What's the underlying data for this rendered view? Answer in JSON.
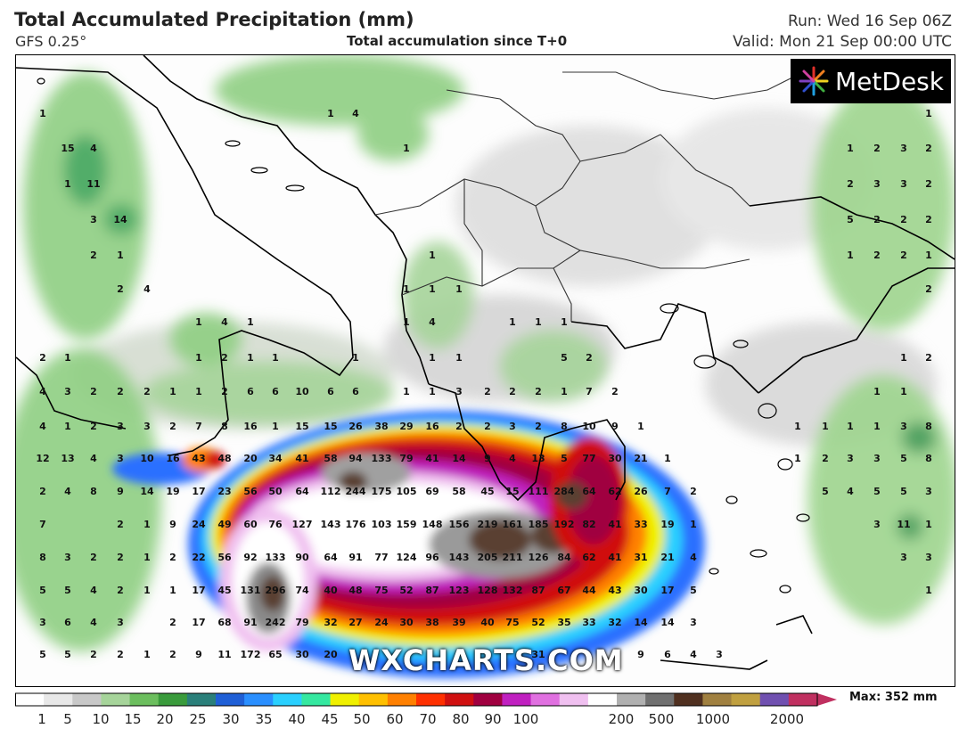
{
  "header": {
    "title": "Total Accumulated Precipitation (mm)",
    "model": "GFS 0.25°",
    "subtitle": "Total accumulation since T+0",
    "run": "Run: Wed 16 Sep 06Z",
    "valid": "Valid: Mon 21 Sep 00:00 UTC"
  },
  "logo": {
    "text": "MetDesk",
    "icon": "metdesk-starburst-icon"
  },
  "watermark": "WXCHARTS.COM",
  "colorbar": {
    "ticks": [
      "1",
      "5",
      "10",
      "15",
      "20",
      "25",
      "30",
      "35",
      "40",
      "45",
      "50",
      "60",
      "70",
      "80",
      "90",
      "100",
      "200",
      "500",
      "1000",
      "2000"
    ],
    "max_label": "Max: 352 mm",
    "colors": [
      "#ffffff",
      "#e8e8e8",
      "#c8c8c8",
      "#a6d49a",
      "#6cbe5e",
      "#3a9b3c",
      "#2a7f7a",
      "#1f5fd6",
      "#2a8fff",
      "#2ad0ff",
      "#35e8a0",
      "#f0f000",
      "#ffc000",
      "#ff8000",
      "#ff3000",
      "#d01010",
      "#a00040",
      "#c020c0",
      "#e070e0",
      "#f0c0f0",
      "#ffffff",
      "#b0b0b0",
      "#707070",
      "#503020",
      "#a08040",
      "#c0a040",
      "#7050b0",
      "#c03060"
    ]
  },
  "map": {
    "numbers": [
      [
        "1",
        47,
        126
      ],
      [
        "15",
        75,
        165
      ],
      [
        "4",
        104,
        165
      ],
      [
        "1",
        75,
        205
      ],
      [
        "11",
        104,
        205
      ],
      [
        "3",
        104,
        245
      ],
      [
        "14",
        134,
        245
      ],
      [
        "2",
        104,
        285
      ],
      [
        "1",
        134,
        285
      ],
      [
        "2",
        134,
        323
      ],
      [
        "4",
        164,
        323
      ],
      [
        "1",
        370,
        126
      ],
      [
        "4",
        398,
        126
      ],
      [
        "1",
        455,
        165
      ],
      [
        "1",
        1041,
        126
      ],
      [
        "1",
        953,
        165
      ],
      [
        "2",
        983,
        165
      ],
      [
        "3",
        1013,
        165
      ],
      [
        "2",
        1041,
        165
      ],
      [
        "2",
        953,
        205
      ],
      [
        "3",
        983,
        205
      ],
      [
        "3",
        1013,
        205
      ],
      [
        "2",
        1041,
        205
      ],
      [
        "5",
        953,
        245
      ],
      [
        "2",
        983,
        245
      ],
      [
        "2",
        1013,
        245
      ],
      [
        "2",
        1041,
        245
      ],
      [
        "1",
        953,
        285
      ],
      [
        "2",
        983,
        285
      ],
      [
        "2",
        1013,
        285
      ],
      [
        "1",
        1041,
        285
      ],
      [
        "2",
        1041,
        323
      ],
      [
        "1",
        484,
        285
      ],
      [
        "1",
        455,
        323
      ],
      [
        "1",
        484,
        323
      ],
      [
        "1",
        514,
        323
      ],
      [
        "1",
        455,
        360
      ],
      [
        "4",
        484,
        360
      ],
      [
        "1",
        574,
        360
      ],
      [
        "1",
        603,
        360
      ],
      [
        "1",
        632,
        360
      ],
      [
        "1",
        222,
        360
      ],
      [
        "4",
        251,
        360
      ],
      [
        "1",
        280,
        360
      ],
      [
        "2",
        47,
        400
      ],
      [
        "1",
        75,
        400
      ],
      [
        "1",
        222,
        400
      ],
      [
        "2",
        251,
        400
      ],
      [
        "1",
        280,
        400
      ],
      [
        "1",
        308,
        400
      ],
      [
        "1",
        398,
        400
      ],
      [
        "1",
        484,
        400
      ],
      [
        "1",
        514,
        400
      ],
      [
        "5",
        632,
        400
      ],
      [
        "2",
        660,
        400
      ],
      [
        "1",
        1013,
        400
      ],
      [
        "2",
        1041,
        400
      ],
      [
        "4",
        47,
        438
      ],
      [
        "3",
        75,
        438
      ],
      [
        "2",
        104,
        438
      ],
      [
        "2",
        134,
        438
      ],
      [
        "2",
        164,
        438
      ],
      [
        "1",
        193,
        438
      ],
      [
        "1",
        222,
        438
      ],
      [
        "2",
        251,
        438
      ],
      [
        "6",
        280,
        438
      ],
      [
        "6",
        308,
        438
      ],
      [
        "10",
        338,
        438
      ],
      [
        "6",
        370,
        438
      ],
      [
        "6",
        398,
        438
      ],
      [
        "1",
        455,
        438
      ],
      [
        "1",
        484,
        438
      ],
      [
        "3",
        514,
        438
      ],
      [
        "2",
        546,
        438
      ],
      [
        "2",
        574,
        438
      ],
      [
        "2",
        603,
        438
      ],
      [
        "1",
        632,
        438
      ],
      [
        "7",
        660,
        438
      ],
      [
        "2",
        689,
        438
      ],
      [
        "1",
        983,
        438
      ],
      [
        "1",
        1013,
        438
      ],
      [
        "4",
        47,
        477
      ],
      [
        "1",
        75,
        477
      ],
      [
        "2",
        104,
        477
      ],
      [
        "3",
        134,
        477
      ],
      [
        "3",
        164,
        477
      ],
      [
        "2",
        193,
        477
      ],
      [
        "7",
        222,
        477
      ],
      [
        "8",
        251,
        477
      ],
      [
        "16",
        280,
        477
      ],
      [
        "1",
        308,
        477
      ],
      [
        "15",
        338,
        477
      ],
      [
        "15",
        370,
        477
      ],
      [
        "26",
        398,
        477
      ],
      [
        "38",
        427,
        477
      ],
      [
        "29",
        455,
        477
      ],
      [
        "16",
        484,
        477
      ],
      [
        "2",
        514,
        477
      ],
      [
        "2",
        546,
        477
      ],
      [
        "3",
        574,
        477
      ],
      [
        "2",
        603,
        477
      ],
      [
        "8",
        632,
        477
      ],
      [
        "10",
        660,
        477
      ],
      [
        "9",
        689,
        477
      ],
      [
        "1",
        718,
        477
      ],
      [
        "1",
        894,
        477
      ],
      [
        "1",
        925,
        477
      ],
      [
        "1",
        953,
        477
      ],
      [
        "1",
        983,
        477
      ],
      [
        "3",
        1013,
        477
      ],
      [
        "8",
        1041,
        477
      ],
      [
        "12",
        47,
        513
      ],
      [
        "13",
        75,
        513
      ],
      [
        "4",
        104,
        513
      ],
      [
        "3",
        134,
        513
      ],
      [
        "10",
        164,
        513
      ],
      [
        "16",
        193,
        513
      ],
      [
        "43",
        222,
        513
      ],
      [
        "48",
        251,
        513
      ],
      [
        "20",
        280,
        513
      ],
      [
        "34",
        308,
        513
      ],
      [
        "41",
        338,
        513
      ],
      [
        "58",
        370,
        513
      ],
      [
        "94",
        398,
        513
      ],
      [
        "133",
        427,
        513
      ],
      [
        "79",
        455,
        513
      ],
      [
        "41",
        484,
        513
      ],
      [
        "14",
        514,
        513
      ],
      [
        "9",
        546,
        513
      ],
      [
        "4",
        574,
        513
      ],
      [
        "13",
        603,
        513
      ],
      [
        "5",
        632,
        513
      ],
      [
        "77",
        660,
        513
      ],
      [
        "30",
        689,
        513
      ],
      [
        "21",
        718,
        513
      ],
      [
        "1",
        748,
        513
      ],
      [
        "1",
        894,
        513
      ],
      [
        "2",
        925,
        513
      ],
      [
        "3",
        953,
        513
      ],
      [
        "3",
        983,
        513
      ],
      [
        "5",
        1013,
        513
      ],
      [
        "8",
        1041,
        513
      ],
      [
        "2",
        47,
        550
      ],
      [
        "4",
        75,
        550
      ],
      [
        "8",
        104,
        550
      ],
      [
        "9",
        134,
        550
      ],
      [
        "14",
        164,
        550
      ],
      [
        "19",
        193,
        550
      ],
      [
        "17",
        222,
        550
      ],
      [
        "23",
        251,
        550
      ],
      [
        "56",
        280,
        550
      ],
      [
        "50",
        308,
        550
      ],
      [
        "64",
        338,
        550
      ],
      [
        "112",
        370,
        550
      ],
      [
        "244",
        398,
        550
      ],
      [
        "175",
        427,
        550
      ],
      [
        "105",
        455,
        550
      ],
      [
        "69",
        484,
        550
      ],
      [
        "58",
        514,
        550
      ],
      [
        "45",
        546,
        550
      ],
      [
        "15",
        574,
        550
      ],
      [
        "111",
        603,
        550
      ],
      [
        "284",
        632,
        550
      ],
      [
        "64",
        660,
        550
      ],
      [
        "62",
        689,
        550
      ],
      [
        "26",
        718,
        550
      ],
      [
        "7",
        748,
        550
      ],
      [
        "2",
        777,
        550
      ],
      [
        "5",
        925,
        550
      ],
      [
        "4",
        953,
        550
      ],
      [
        "5",
        983,
        550
      ],
      [
        "5",
        1013,
        550
      ],
      [
        "3",
        1041,
        550
      ],
      [
        "7",
        47,
        587
      ],
      [
        "2",
        134,
        587
      ],
      [
        "1",
        164,
        587
      ],
      [
        "9",
        193,
        587
      ],
      [
        "24",
        222,
        587
      ],
      [
        "49",
        251,
        587
      ],
      [
        "60",
        280,
        587
      ],
      [
        "76",
        308,
        587
      ],
      [
        "127",
        338,
        587
      ],
      [
        "143",
        370,
        587
      ],
      [
        "176",
        398,
        587
      ],
      [
        "103",
        427,
        587
      ],
      [
        "159",
        455,
        587
      ],
      [
        "148",
        484,
        587
      ],
      [
        "156",
        514,
        587
      ],
      [
        "219",
        546,
        587
      ],
      [
        "161",
        574,
        587
      ],
      [
        "185",
        603,
        587
      ],
      [
        "192",
        632,
        587
      ],
      [
        "82",
        660,
        587
      ],
      [
        "41",
        689,
        587
      ],
      [
        "33",
        718,
        587
      ],
      [
        "19",
        748,
        587
      ],
      [
        "1",
        777,
        587
      ],
      [
        "3",
        983,
        587
      ],
      [
        "11",
        1013,
        587
      ],
      [
        "1",
        1041,
        587
      ],
      [
        "8",
        47,
        624
      ],
      [
        "3",
        75,
        624
      ],
      [
        "2",
        104,
        624
      ],
      [
        "2",
        134,
        624
      ],
      [
        "1",
        164,
        624
      ],
      [
        "2",
        193,
        624
      ],
      [
        "22",
        222,
        624
      ],
      [
        "56",
        251,
        624
      ],
      [
        "92",
        280,
        624
      ],
      [
        "133",
        308,
        624
      ],
      [
        "90",
        338,
        624
      ],
      [
        "64",
        370,
        624
      ],
      [
        "91",
        398,
        624
      ],
      [
        "77",
        427,
        624
      ],
      [
        "124",
        455,
        624
      ],
      [
        "96",
        484,
        624
      ],
      [
        "143",
        514,
        624
      ],
      [
        "205",
        546,
        624
      ],
      [
        "211",
        574,
        624
      ],
      [
        "126",
        603,
        624
      ],
      [
        "84",
        632,
        624
      ],
      [
        "62",
        660,
        624
      ],
      [
        "41",
        689,
        624
      ],
      [
        "31",
        718,
        624
      ],
      [
        "21",
        748,
        624
      ],
      [
        "4",
        777,
        624
      ],
      [
        "3",
        1013,
        624
      ],
      [
        "3",
        1041,
        624
      ],
      [
        "5",
        47,
        661
      ],
      [
        "5",
        75,
        661
      ],
      [
        "4",
        104,
        661
      ],
      [
        "2",
        134,
        661
      ],
      [
        "1",
        164,
        661
      ],
      [
        "1",
        193,
        661
      ],
      [
        "17",
        222,
        661
      ],
      [
        "45",
        251,
        661
      ],
      [
        "131",
        280,
        661
      ],
      [
        "296",
        308,
        661
      ],
      [
        "74",
        338,
        661
      ],
      [
        "40",
        370,
        661
      ],
      [
        "48",
        398,
        661
      ],
      [
        "75",
        427,
        661
      ],
      [
        "52",
        455,
        661
      ],
      [
        "87",
        484,
        661
      ],
      [
        "123",
        514,
        661
      ],
      [
        "128",
        546,
        661
      ],
      [
        "132",
        574,
        661
      ],
      [
        "87",
        603,
        661
      ],
      [
        "67",
        632,
        661
      ],
      [
        "44",
        660,
        661
      ],
      [
        "43",
        689,
        661
      ],
      [
        "30",
        718,
        661
      ],
      [
        "17",
        748,
        661
      ],
      [
        "5",
        777,
        661
      ],
      [
        "1",
        1041,
        661
      ],
      [
        "3",
        47,
        697
      ],
      [
        "6",
        75,
        697
      ],
      [
        "4",
        104,
        697
      ],
      [
        "3",
        134,
        697
      ],
      [
        "2",
        193,
        697
      ],
      [
        "17",
        222,
        697
      ],
      [
        "68",
        251,
        697
      ],
      [
        "91",
        280,
        697
      ],
      [
        "242",
        308,
        697
      ],
      [
        "79",
        338,
        697
      ],
      [
        "32",
        370,
        697
      ],
      [
        "27",
        398,
        697
      ],
      [
        "24",
        427,
        697
      ],
      [
        "30",
        455,
        697
      ],
      [
        "38",
        484,
        697
      ],
      [
        "39",
        514,
        697
      ],
      [
        "40",
        546,
        697
      ],
      [
        "75",
        574,
        697
      ],
      [
        "52",
        603,
        697
      ],
      [
        "35",
        632,
        697
      ],
      [
        "33",
        660,
        697
      ],
      [
        "32",
        689,
        697
      ],
      [
        "14",
        718,
        697
      ],
      [
        "14",
        748,
        697
      ],
      [
        "3",
        777,
        697
      ],
      [
        "5",
        47,
        733
      ],
      [
        "5",
        75,
        733
      ],
      [
        "2",
        104,
        733
      ],
      [
        "2",
        134,
        733
      ],
      [
        "1",
        164,
        733
      ],
      [
        "2",
        193,
        733
      ],
      [
        "9",
        222,
        733
      ],
      [
        "11",
        251,
        733
      ],
      [
        "172",
        280,
        733
      ],
      [
        "65",
        308,
        733
      ],
      [
        "30",
        338,
        733
      ],
      [
        "20",
        370,
        733
      ],
      [
        "31",
        603,
        733
      ],
      [
        "9",
        718,
        733
      ],
      [
        "6",
        748,
        733
      ],
      [
        "4",
        777,
        733
      ],
      [
        "3",
        806,
        733
      ]
    ]
  }
}
